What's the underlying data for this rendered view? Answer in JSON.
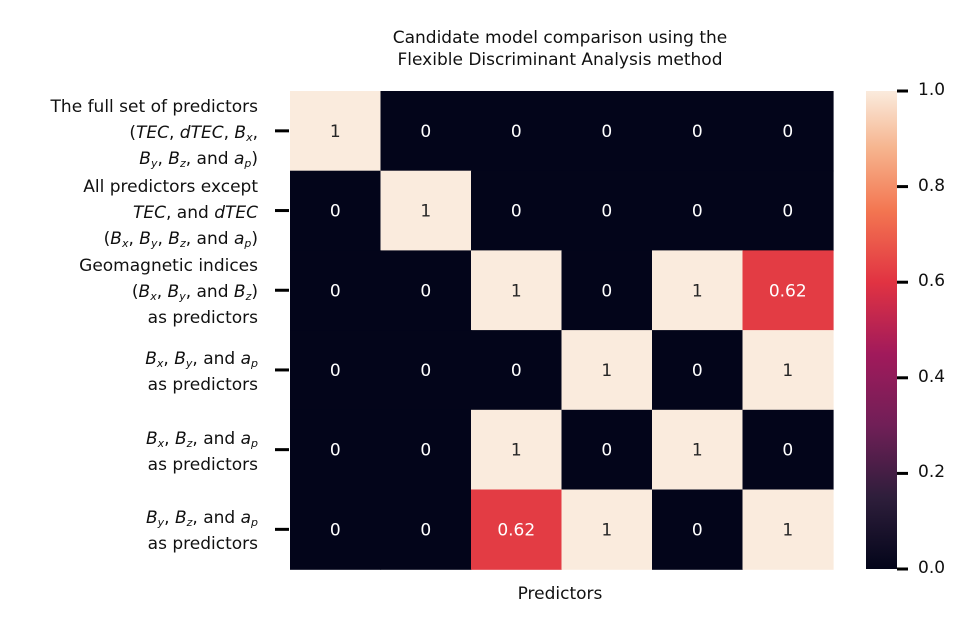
{
  "chart_data": {
    "type": "heatmap",
    "title_lines": [
      "Candidate model comparison using the",
      "Flexible Discriminant Analysis method"
    ],
    "xlabel": "Predictors",
    "ylabel": "",
    "row_labels": [
      [
        "The full set of predictors",
        "(TEC, dTEC, Bx,",
        "By, Bz, and ap)"
      ],
      [
        "All predictors except",
        "TEC, and dTEC",
        "(Bx, By, Bz, and ap)"
      ],
      [
        "Geomagnetic indices",
        "(Bx, By, and Bz)",
        "as predictors"
      ],
      [
        "Bx, By, and ap",
        "as predictors"
      ],
      [
        "Bx, Bz, and ap",
        "as predictors"
      ],
      [
        "By, Bz, and ap",
        "as predictors"
      ]
    ],
    "cell_labels": [
      [
        "1",
        "0",
        "0",
        "0",
        "0",
        "0"
      ],
      [
        "0",
        "1",
        "0",
        "0",
        "0",
        "0"
      ],
      [
        "0",
        "0",
        "1",
        "0",
        "1",
        "0.62"
      ],
      [
        "0",
        "0",
        "0",
        "1",
        "0",
        "1"
      ],
      [
        "0",
        "0",
        "1",
        "0",
        "1",
        "0"
      ],
      [
        "0",
        "0",
        "0.62",
        "1",
        "0",
        "1"
      ]
    ],
    "values": [
      [
        1,
        0,
        0,
        0,
        0,
        0
      ],
      [
        0,
        1,
        0,
        0,
        0,
        0
      ],
      [
        0,
        0,
        1,
        0,
        1,
        0.62
      ],
      [
        0,
        0,
        0,
        1,
        0,
        1
      ],
      [
        0,
        0,
        1,
        0,
        1,
        0
      ],
      [
        0,
        0,
        0.62,
        1,
        0,
        1
      ]
    ],
    "colorbar": {
      "range": [
        0.0,
        1.0
      ],
      "ticks": [
        "0.0",
        "0.2",
        "0.4",
        "0.6",
        "0.8",
        "1.0"
      ],
      "colormap": "rocket"
    },
    "grid": false
  }
}
